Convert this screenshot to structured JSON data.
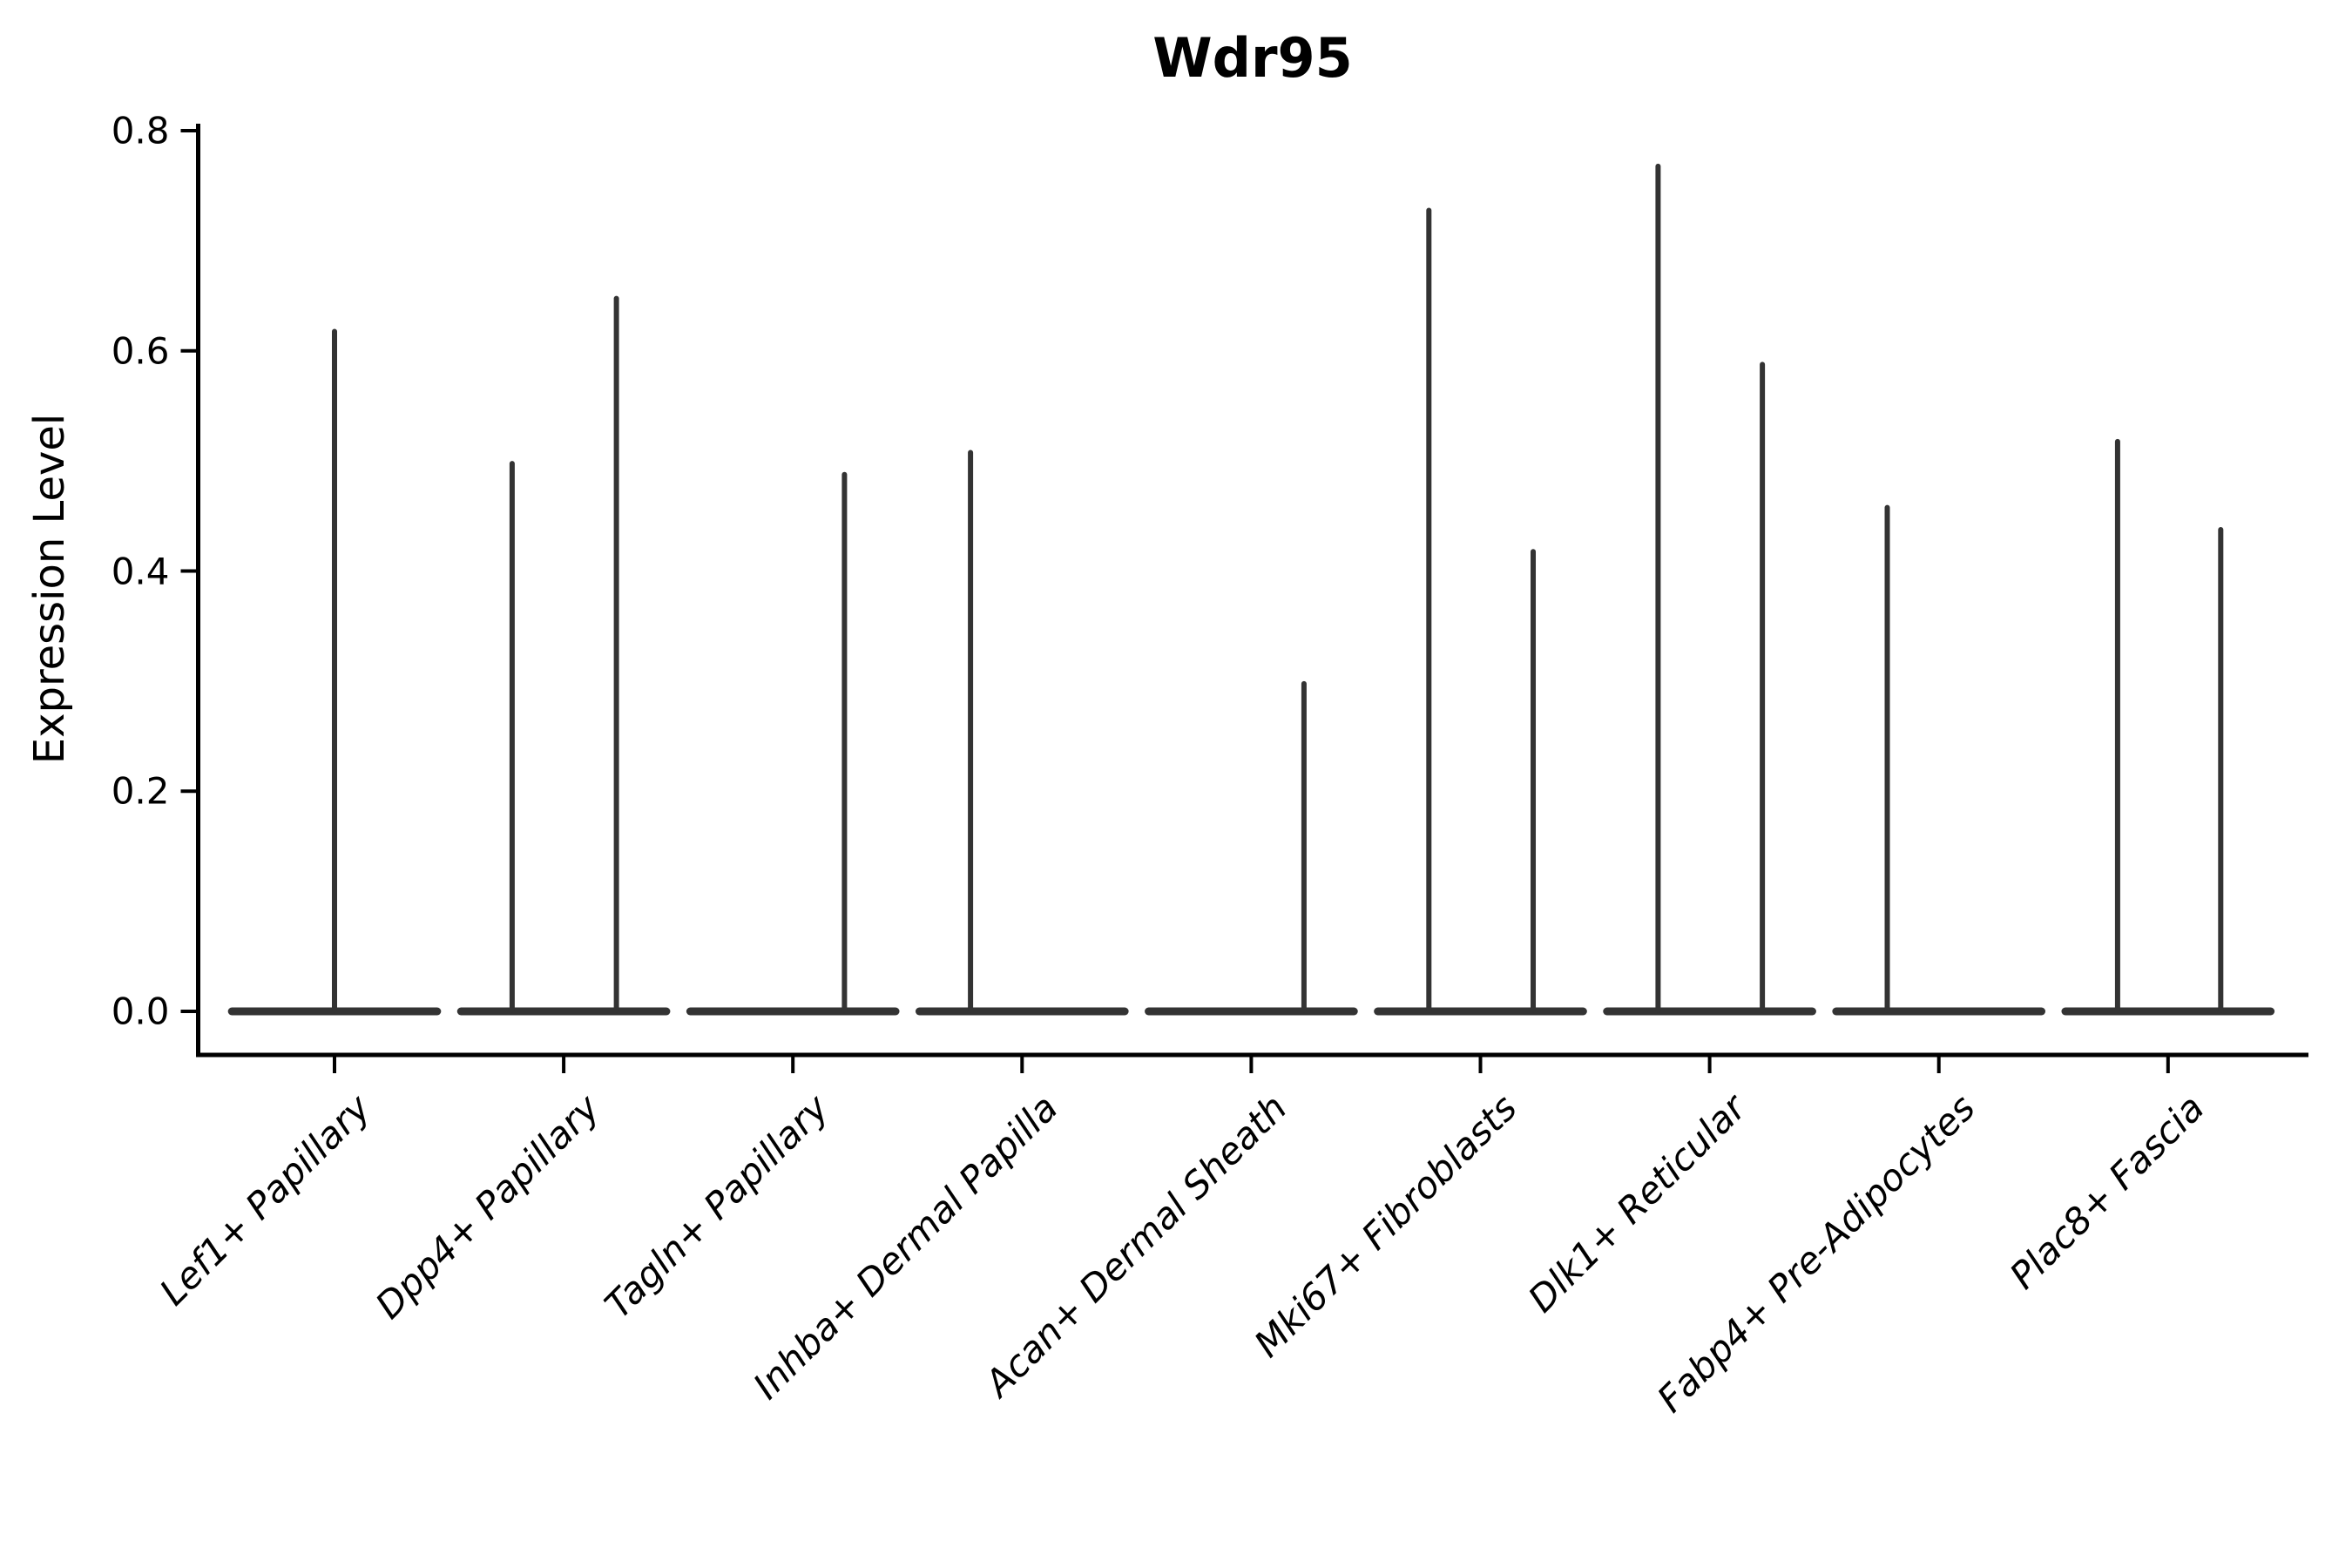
{
  "chart_data": {
    "type": "violin",
    "title": "Wdr95",
    "ylabel": "Expression Level",
    "xlabel": "",
    "categories": [
      "Lef1+ Papillary",
      "Dpp4+ Papillary",
      "Tagln+ Papillary",
      "Inhba+ Dermal Papilla",
      "Acan+ Dermal Sheath",
      "Mki67+ Fibroblasts",
      "Dlk1+ Reticular",
      "Fabp4+ Pre-Adipocytes",
      "Plac8+ Fascia"
    ],
    "yticks": [
      "0.0",
      "0.2",
      "0.4",
      "0.6",
      "0.8"
    ],
    "ylim": [
      0,
      0.81
    ],
    "grid": false,
    "baseline_bar": {
      "value": 0.0,
      "halfwidth_frac": 0.465
    },
    "violins": [
      {
        "category": "Lef1+ Papillary",
        "spikes": [
          {
            "offset": 0.0,
            "peak": 0.62
          }
        ]
      },
      {
        "category": "Dpp4+ Papillary",
        "spikes": [
          {
            "offset": -0.225,
            "peak": 0.5
          },
          {
            "offset": 0.23,
            "peak": 0.65
          }
        ]
      },
      {
        "category": "Tagln+ Papillary",
        "spikes": [
          {
            "offset": 0.225,
            "peak": 0.49
          }
        ]
      },
      {
        "category": "Inhba+ Dermal Papilla",
        "spikes": [
          {
            "offset": -0.225,
            "peak": 0.51
          }
        ]
      },
      {
        "category": "Acan+ Dermal Sheath",
        "spikes": [
          {
            "offset": 0.23,
            "peak": 0.3
          }
        ]
      },
      {
        "category": "Mki67+ Fibroblasts",
        "spikes": [
          {
            "offset": -0.225,
            "peak": 0.73
          },
          {
            "offset": 0.23,
            "peak": 0.42
          }
        ]
      },
      {
        "category": "Dlk1+ Reticular",
        "spikes": [
          {
            "offset": -0.225,
            "peak": 0.77
          },
          {
            "offset": 0.23,
            "peak": 0.59
          }
        ]
      },
      {
        "category": "Fabp4+ Pre-Adipocytes",
        "spikes": [
          {
            "offset": -0.225,
            "peak": 0.46
          }
        ]
      },
      {
        "category": "Plac8+ Fascia",
        "spikes": [
          {
            "offset": -0.22,
            "peak": 0.52
          },
          {
            "offset": 0.23,
            "peak": 0.44
          }
        ]
      }
    ],
    "colors": {
      "violin": "#333333",
      "axis": "#000000",
      "text": "#000000"
    }
  }
}
